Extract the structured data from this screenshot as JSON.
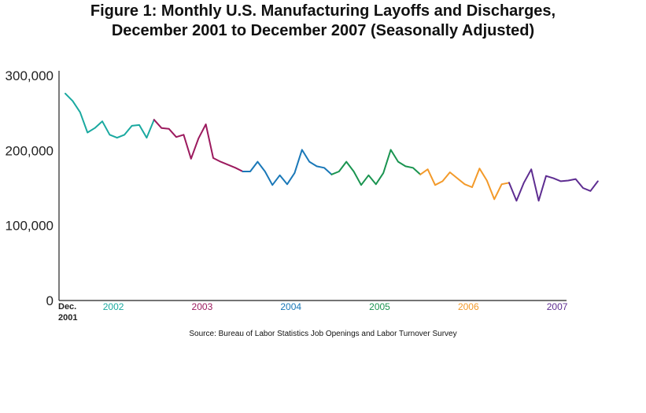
{
  "title_lines": [
    "Figure 1: Monthly U.S. Manufacturing Layoffs and Discharges,",
    "December 2001 to December 2007 (Seasonally Adjusted)"
  ],
  "source": "Source: Bureau of Labor Statistics Job Openings and Labor Turnover Survey",
  "chart_data": {
    "type": "line",
    "title": "Figure 1: Monthly U.S. Manufacturing Layoffs and Discharges, December 2001 to December 2007 (Seasonally Adjusted)",
    "xlabel": "",
    "ylabel": "",
    "ylim": [
      0,
      300000
    ],
    "yticks": [
      0,
      100000,
      200000,
      300000
    ],
    "ytick_labels": [
      "0",
      "100,000",
      "200,000",
      "300,000"
    ],
    "first_label": [
      "Dec.",
      "2001"
    ],
    "grid": false,
    "legend": "none",
    "series": [
      {
        "label": "2001",
        "color": "#e8323c",
        "months": [
          "2001-12"
        ],
        "values": [
          276000
        ]
      },
      {
        "label": "2002",
        "color": "#1aa9a0",
        "months": [
          "2002-01",
          "2002-02",
          "2002-03",
          "2002-04",
          "2002-05",
          "2002-06",
          "2002-07",
          "2002-08",
          "2002-09",
          "2002-10",
          "2002-11",
          "2002-12"
        ],
        "values": [
          266000,
          251000,
          224000,
          230000,
          239000,
          221000,
          217000,
          221000,
          233000,
          234000,
          217000,
          241000
        ]
      },
      {
        "label": "2003",
        "color": "#9c1a5e",
        "months": [
          "2003-01",
          "2003-02",
          "2003-03",
          "2003-04",
          "2003-05",
          "2003-06",
          "2003-07",
          "2003-08",
          "2003-09",
          "2003-10",
          "2003-11",
          "2003-12"
        ],
        "values": [
          230000,
          229000,
          218000,
          221000,
          189000,
          216000,
          235000,
          190000,
          185000,
          181000,
          177000,
          172000
        ]
      },
      {
        "label": "2004",
        "color": "#1a78b8",
        "months": [
          "2004-01",
          "2004-02",
          "2004-03",
          "2004-04",
          "2004-05",
          "2004-06",
          "2004-07",
          "2004-08",
          "2004-09",
          "2004-10",
          "2004-11",
          "2004-12"
        ],
        "values": [
          172000,
          185000,
          172000,
          154000,
          167000,
          155000,
          170000,
          201000,
          185000,
          179000,
          177000,
          168000
        ]
      },
      {
        "label": "2005",
        "color": "#1a9450",
        "months": [
          "2005-01",
          "2005-02",
          "2005-03",
          "2005-04",
          "2005-05",
          "2005-06",
          "2005-07",
          "2005-08",
          "2005-09",
          "2005-10",
          "2005-11",
          "2005-12"
        ],
        "values": [
          172000,
          185000,
          172000,
          154000,
          167000,
          155000,
          170000,
          201000,
          185000,
          179000,
          177000,
          168000
        ]
      },
      {
        "label": "2006",
        "color": "#f39a2a",
        "months": [
          "2006-01",
          "2006-02",
          "2006-03",
          "2006-04",
          "2006-05",
          "2006-06",
          "2006-07",
          "2006-08",
          "2006-09",
          "2006-10",
          "2006-11",
          "2006-12"
        ],
        "values": [
          175000,
          154000,
          159000,
          171000,
          163000,
          155000,
          151000,
          176000,
          160000,
          135000,
          155000,
          157000
        ]
      },
      {
        "label": "2007",
        "color": "#5e2d91",
        "months": [
          "2007-01",
          "2007-02",
          "2007-03",
          "2007-04",
          "2007-05",
          "2007-06",
          "2007-07",
          "2007-08",
          "2007-09",
          "2007-10",
          "2007-11",
          "2007-12"
        ],
        "values": [
          133000,
          157000,
          175000,
          133000,
          166000,
          163000,
          159000,
          160000,
          162000,
          150000,
          146000,
          159000
        ]
      }
    ]
  }
}
